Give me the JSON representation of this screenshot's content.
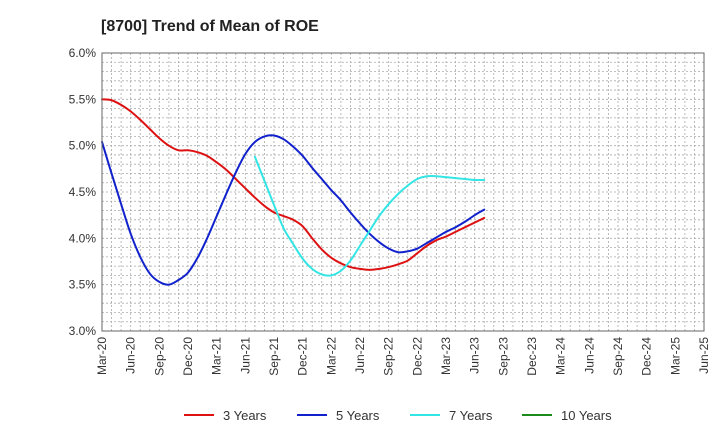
{
  "chart_data": {
    "type": "line",
    "title": "[8700]  Trend of Mean of ROE",
    "xlabel": "",
    "ylabel": "",
    "ylim": [
      3.0,
      6.0
    ],
    "y_ticks": [
      "3.0%",
      "3.5%",
      "4.0%",
      "4.5%",
      "5.0%",
      "5.5%",
      "6.0%"
    ],
    "x_ticks": [
      "Mar-20",
      "Jun-20",
      "Sep-20",
      "Dec-20",
      "Mar-21",
      "Jun-21",
      "Sep-21",
      "Dec-21",
      "Mar-22",
      "Jun-22",
      "Sep-22",
      "Dec-22",
      "Mar-23",
      "Jun-23",
      "Sep-23",
      "Dec-23",
      "Mar-24",
      "Jun-24",
      "Sep-24",
      "Dec-24",
      "Mar-25",
      "Jun-25"
    ],
    "grid": true,
    "legend_position": "bottom",
    "series": [
      {
        "name": "3 Years",
        "color": "#dd1111",
        "start_index": 0,
        "values": [
          5.5,
          5.49,
          5.44,
          5.37,
          5.28,
          5.18,
          5.08,
          5.0,
          4.95,
          4.95,
          4.93,
          4.89,
          4.82,
          4.74,
          4.64,
          4.54,
          4.44,
          4.35,
          4.28,
          4.24,
          4.2,
          4.13,
          4.0,
          3.88,
          3.79,
          3.73,
          3.69,
          3.67,
          3.66,
          3.67,
          3.69,
          3.72,
          3.76,
          3.84,
          3.92,
          3.98,
          4.02,
          4.07,
          4.12,
          4.17,
          4.22
        ]
      },
      {
        "name": "5 Years",
        "color": "#1122cc",
        "start_index": 0,
        "values": [
          5.04,
          4.7,
          4.37,
          4.05,
          3.8,
          3.62,
          3.53,
          3.5,
          3.55,
          3.63,
          3.79,
          4.0,
          4.24,
          4.48,
          4.71,
          4.91,
          5.04,
          5.1,
          5.11,
          5.07,
          4.99,
          4.89,
          4.76,
          4.64,
          4.52,
          4.41,
          4.28,
          4.16,
          4.05,
          3.96,
          3.89,
          3.85,
          3.86,
          3.89,
          3.95,
          4.01,
          4.07,
          4.12,
          4.18,
          4.25,
          4.31
        ]
      },
      {
        "name": "7 Years",
        "color": "#33e5e5",
        "start_index": 16,
        "values": [
          4.88,
          4.62,
          4.36,
          4.11,
          3.94,
          3.78,
          3.67,
          3.61,
          3.6,
          3.65,
          3.76,
          3.92,
          4.08,
          4.24,
          4.37,
          4.48,
          4.57,
          4.64,
          4.67,
          4.67,
          4.66,
          4.65,
          4.64,
          4.63,
          4.63
        ]
      },
      {
        "name": "10 Years",
        "color": "#1a8a1a",
        "start_index": 0,
        "values": []
      }
    ]
  }
}
